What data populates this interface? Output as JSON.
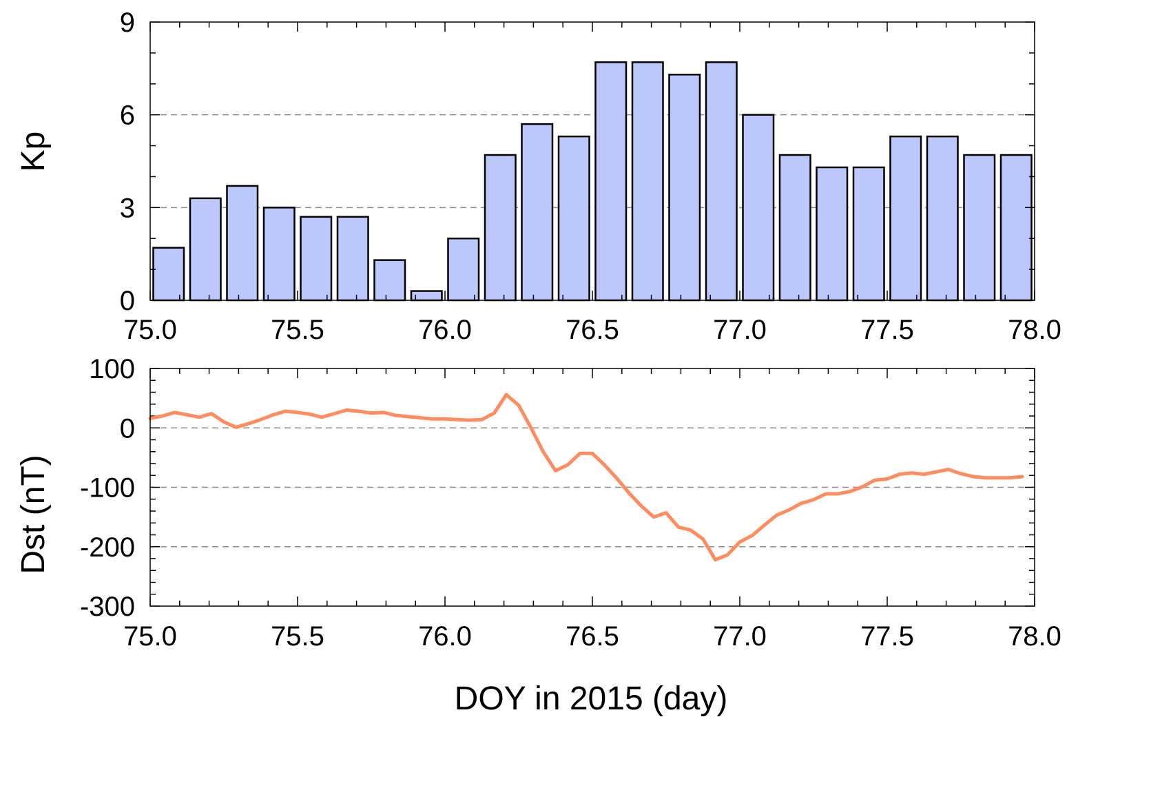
{
  "chart_data": [
    {
      "type": "bar",
      "ylabel": "Kp",
      "xlabel": "",
      "xlim": [
        75.0,
        78.0
      ],
      "ylim": [
        0,
        9
      ],
      "xticks": [
        "75.0",
        "75.5",
        "76.0",
        "76.5",
        "77.0",
        "77.5",
        "78.0"
      ],
      "yticks": [
        "0",
        "3",
        "6",
        "9"
      ],
      "grid": "dashed at y = 3 and 6",
      "bar_color": "#bcc8fb",
      "bar_width_days": 0.104,
      "x": [
        75.0625,
        75.1875,
        75.3125,
        75.4375,
        75.5625,
        75.6875,
        75.8125,
        75.9375,
        76.0625,
        76.1875,
        76.3125,
        76.4375,
        76.5625,
        76.6875,
        76.8125,
        76.9375,
        77.0625,
        77.1875,
        77.3125,
        77.4375,
        77.5625,
        77.6875,
        77.8125,
        77.9375
      ],
      "values": [
        1.7,
        3.3,
        3.7,
        3.0,
        2.7,
        2.7,
        1.3,
        0.3,
        2.0,
        4.7,
        5.7,
        5.3,
        7.7,
        7.7,
        7.3,
        7.7,
        6.0,
        4.7,
        4.3,
        4.3,
        5.3,
        5.3,
        4.7,
        4.7
      ]
    },
    {
      "type": "line",
      "ylabel": "Dst (nT)",
      "xlabel": "DOY in 2015 (day)",
      "xlim": [
        75.0,
        78.0
      ],
      "ylim": [
        -300,
        100
      ],
      "xticks": [
        "75.0",
        "75.5",
        "76.0",
        "76.5",
        "77.0",
        "77.5",
        "78.0"
      ],
      "yticks": [
        "100",
        "0",
        "-100",
        "-200",
        "-300"
      ],
      "grid": "dashed at y = 0, -100, -200",
      "line_color": "#ff8c5f",
      "x": [
        75.0,
        75.042,
        75.083,
        75.125,
        75.167,
        75.208,
        75.25,
        75.292,
        75.333,
        75.375,
        75.417,
        75.458,
        75.5,
        75.542,
        75.583,
        75.625,
        75.667,
        75.708,
        75.75,
        75.792,
        75.833,
        75.875,
        75.917,
        75.958,
        76.0,
        76.042,
        76.083,
        76.125,
        76.167,
        76.208,
        76.25,
        76.292,
        76.333,
        76.375,
        76.417,
        76.458,
        76.5,
        76.542,
        76.583,
        76.625,
        76.667,
        76.708,
        76.75,
        76.792,
        76.833,
        76.875,
        76.917,
        76.958,
        77.0,
        77.042,
        77.083,
        77.125,
        77.167,
        77.208,
        77.25,
        77.292,
        77.333,
        77.375,
        77.417,
        77.458,
        77.5,
        77.542,
        77.583,
        77.625,
        77.667,
        77.708,
        77.75,
        77.792,
        77.833,
        77.875,
        77.917,
        77.958
      ],
      "y": [
        16,
        20,
        26,
        22,
        18,
        24,
        10,
        1,
        7,
        14,
        22,
        28,
        26,
        23,
        18,
        24,
        30,
        28,
        25,
        26,
        21,
        19,
        17,
        15,
        15,
        14,
        13,
        14,
        25,
        56,
        38,
        0,
        -40,
        -72,
        -62,
        -43,
        -43,
        -63,
        -85,
        -110,
        -132,
        -150,
        -143,
        -167,
        -172,
        -187,
        -222,
        -214,
        -192,
        -181,
        -164,
        -147,
        -138,
        -127,
        -121,
        -111,
        -111,
        -107,
        -99,
        -88,
        -86,
        -78,
        -76,
        -78,
        -74,
        -70,
        -77,
        -82,
        -84,
        -84,
        -84,
        -82
      ]
    }
  ]
}
